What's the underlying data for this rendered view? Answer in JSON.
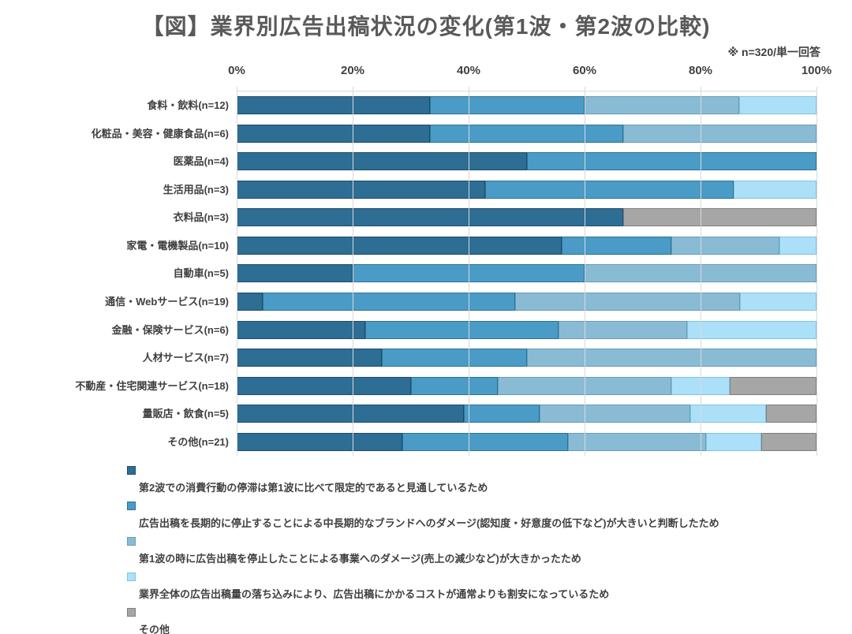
{
  "title": "【図】業界別広告出稿状況の変化(第1波・第2波の比較)",
  "note": "※ n=320/単一回答",
  "chart_data": {
    "type": "bar",
    "stacked": true,
    "orientation": "horizontal",
    "title": "【図】業界別広告出稿状況の変化(第1波・第2波の比較)",
    "subtitle": "※ n=320/単一回答",
    "x_axis": {
      "ticks": [
        "0%",
        "20%",
        "40%",
        "60%",
        "80%",
        "100%"
      ],
      "min": 0,
      "max": 100,
      "unit": "%"
    },
    "grid": true,
    "legend_position": "bottom-left",
    "categories": [
      "食料・飲料(n=12)",
      "化粧品・美容・健康食品(n=6)",
      "医薬品(n=4)",
      "生活用品(n=3)",
      "衣料品(n=3)",
      "家電・電機製品(n=10)",
      "自動車(n=5)",
      "通信・Webサービス(n=19)",
      "金融・保険サービス(n=6)",
      "人材サービス(n=7)",
      "不動産・住宅関連サービス(n=18)",
      "量販店・飲食(n=5)",
      "その他(n=21)"
    ],
    "series": [
      {
        "name": "第2波での消費行動の停滞は第1波に比べて限定的であると見通しているため",
        "color": "#2E6D94",
        "border_color": "#1D4E6D",
        "values": [
          33.3,
          33.3,
          50,
          42.9,
          66.7,
          56,
          20,
          4.5,
          22.2,
          25,
          30,
          42.9,
          28.6
        ]
      },
      {
        "name": "広告出稿を長期的に停止することによる中長期的なブランドへのダメージ(認知度・好意度の低下など)が大きいと判断したため",
        "color": "#4A9CC7",
        "border_color": "#2E7294",
        "values": [
          26.7,
          33.3,
          50,
          42.8,
          0,
          19,
          40,
          43.5,
          33.3,
          25,
          15,
          14.3,
          28.6
        ]
      },
      {
        "name": "第1波の時に広告出稿を停止したことによる事業へのダメージ(売上の減少など)が大きかったため",
        "color": "#8ABBD5",
        "border_color": "#649DB8",
        "values": [
          26.7,
          33.4,
          0,
          0,
          0,
          18.6,
          40,
          38.8,
          22.2,
          50,
          30,
          28.5,
          23.8
        ]
      },
      {
        "name": "業界全体の広告出稿量の落ち込みにより、広告出稿にかかるコストが通常よりも割安になっているため",
        "color": "#ACE0F8",
        "border_color": "#7FC4E4",
        "values": [
          13.3,
          0,
          0,
          14.3,
          0,
          6.4,
          0,
          13.2,
          22.3,
          0,
          10,
          14.3,
          9.5
        ]
      },
      {
        "name": "その他",
        "color": "#A6A6A6",
        "border_color": "#7F7F7F",
        "values": [
          0,
          0,
          0,
          0,
          33.3,
          0,
          0,
          0,
          0,
          0,
          15,
          9.5,
          9.5
        ]
      }
    ]
  }
}
